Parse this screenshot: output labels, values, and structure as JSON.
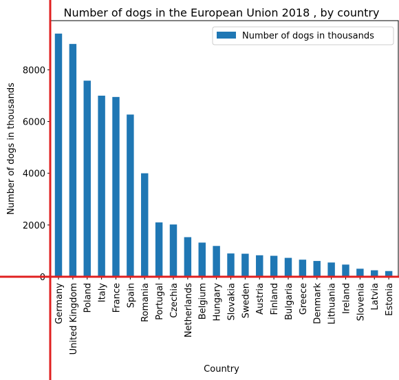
{
  "chart_data": {
    "type": "bar",
    "title": "Number of dogs in the European Union 2018 , by country",
    "xlabel": "Country",
    "ylabel": "Number of dogs in thousands",
    "legend": {
      "entries": [
        "Number of dogs in thousands"
      ],
      "placement": "top-right"
    },
    "ylim": [
      0,
      9900
    ],
    "yticks": [
      0,
      2000,
      4000,
      6000,
      8000
    ],
    "grid": false,
    "bar_color": "#1f77b4",
    "categories": [
      "Germany",
      "United Kingdom",
      "Poland",
      "Italy",
      "France",
      "Spain",
      "Romania",
      "Portugal",
      "Czechia",
      "Netherlands",
      "Belgium",
      "Hungary",
      "Slovakia",
      "Sweden",
      "Austria",
      "Finland",
      "Bulgaria",
      "Greece",
      "Denmark",
      "Lithuania",
      "Ireland",
      "Slovenia",
      "Latvia",
      "Estonia"
    ],
    "series": [
      {
        "name": "Number of dogs in thousands",
        "values": [
          9400,
          9000,
          7580,
          7000,
          6950,
          6270,
          4000,
          2100,
          2020,
          1530,
          1320,
          1190,
          900,
          890,
          830,
          810,
          730,
          660,
          610,
          550,
          470,
          310,
          250,
          220
        ]
      }
    ]
  },
  "overlay": {
    "accent_color": "#e02020"
  }
}
